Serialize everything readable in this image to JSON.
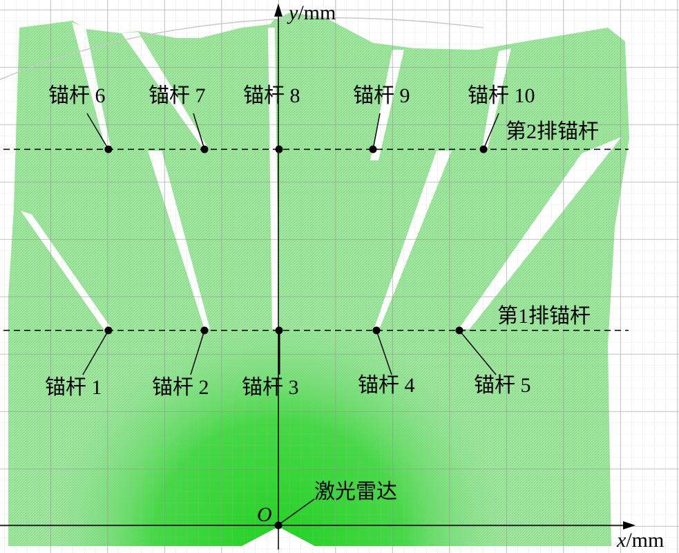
{
  "axes": {
    "x_label_var": "x",
    "x_label_unit": "/mm",
    "y_label_var": "y",
    "y_label_unit": "/mm",
    "origin": "O"
  },
  "lidar_label": "激光雷达",
  "rows": {
    "row1": "第1排锚杆",
    "row2": "第2排锚杆"
  },
  "anchors_row1": [
    "锚杆 1",
    "锚杆 2",
    "锚杆 3",
    "锚杆 4",
    "锚杆 5"
  ],
  "anchors_row2": [
    "锚杆 6",
    "锚杆 7",
    "锚杆 8",
    "锚杆 9",
    "锚杆 10"
  ],
  "colors": {
    "point_cloud_light": "#9be49b",
    "point_cloud_dense": "#2fd12f",
    "grid": "#9a9a9a",
    "marker": "#000000"
  }
}
